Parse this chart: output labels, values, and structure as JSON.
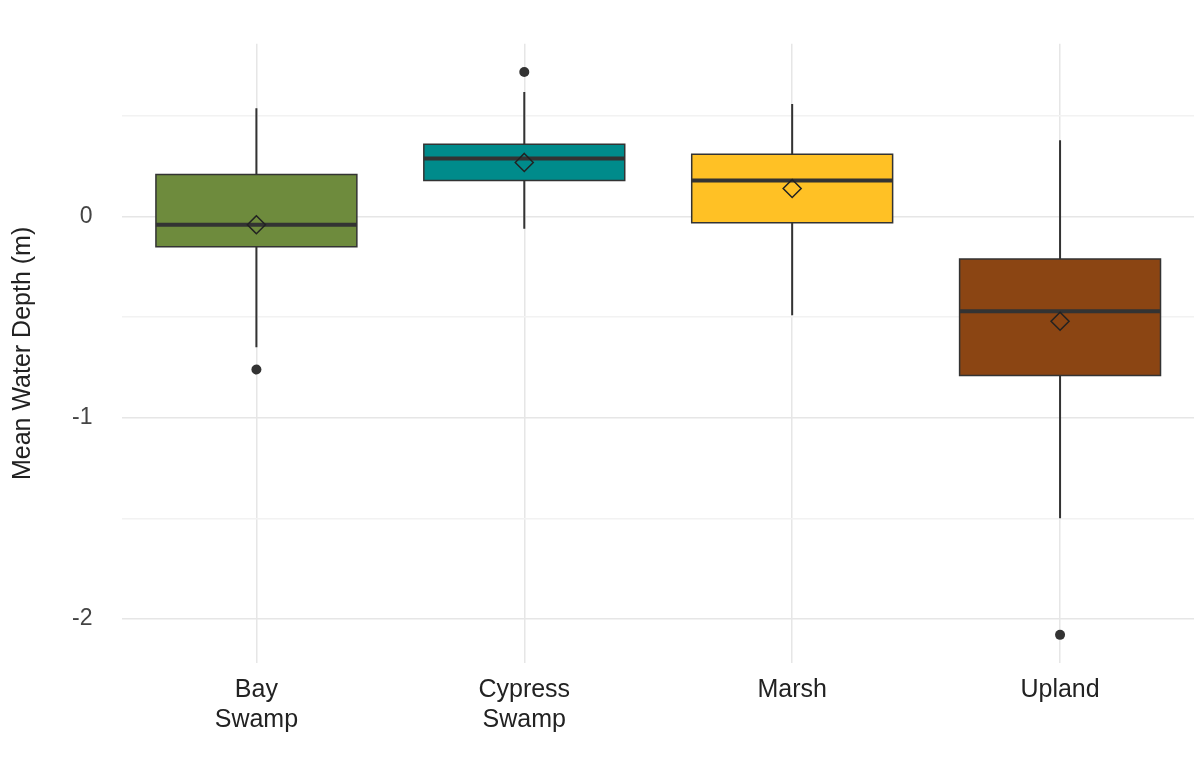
{
  "chart_data": {
    "type": "box",
    "ylabel": "Mean Water Depth (m)",
    "categories": [
      "Bay Swamp",
      "Cypress Swamp",
      "Marsh",
      "Upland"
    ],
    "colors": [
      "#6e8b3d",
      "#008b8b",
      "#ffc125",
      "#8b4513"
    ],
    "boxes": [
      {
        "low": -0.65,
        "q1": -0.15,
        "median": -0.04,
        "q3": 0.21,
        "high": 0.54,
        "mean": -0.04,
        "outliers": [
          -0.76
        ]
      },
      {
        "low": -0.06,
        "q1": 0.18,
        "median": 0.29,
        "q3": 0.36,
        "high": 0.62,
        "mean": 0.27,
        "outliers": [
          0.72
        ]
      },
      {
        "low": -0.49,
        "q1": -0.03,
        "median": 0.18,
        "q3": 0.31,
        "high": 0.56,
        "mean": 0.14
      },
      {
        "low": -1.5,
        "q1": -0.79,
        "median": -0.47,
        "q3": -0.21,
        "high": 0.38,
        "mean": -0.52,
        "outliers": [
          -2.08
        ]
      }
    ],
    "ylim": [
      -2.22,
      0.86
    ],
    "yticks": [
      -2,
      {
        "value": -1.5,
        "label": null
      },
      -1,
      {
        "value": -0.5,
        "label": null
      },
      0,
      {
        "value": 0.5,
        "label": null
      }
    ],
    "grid": true,
    "legend": false
  }
}
